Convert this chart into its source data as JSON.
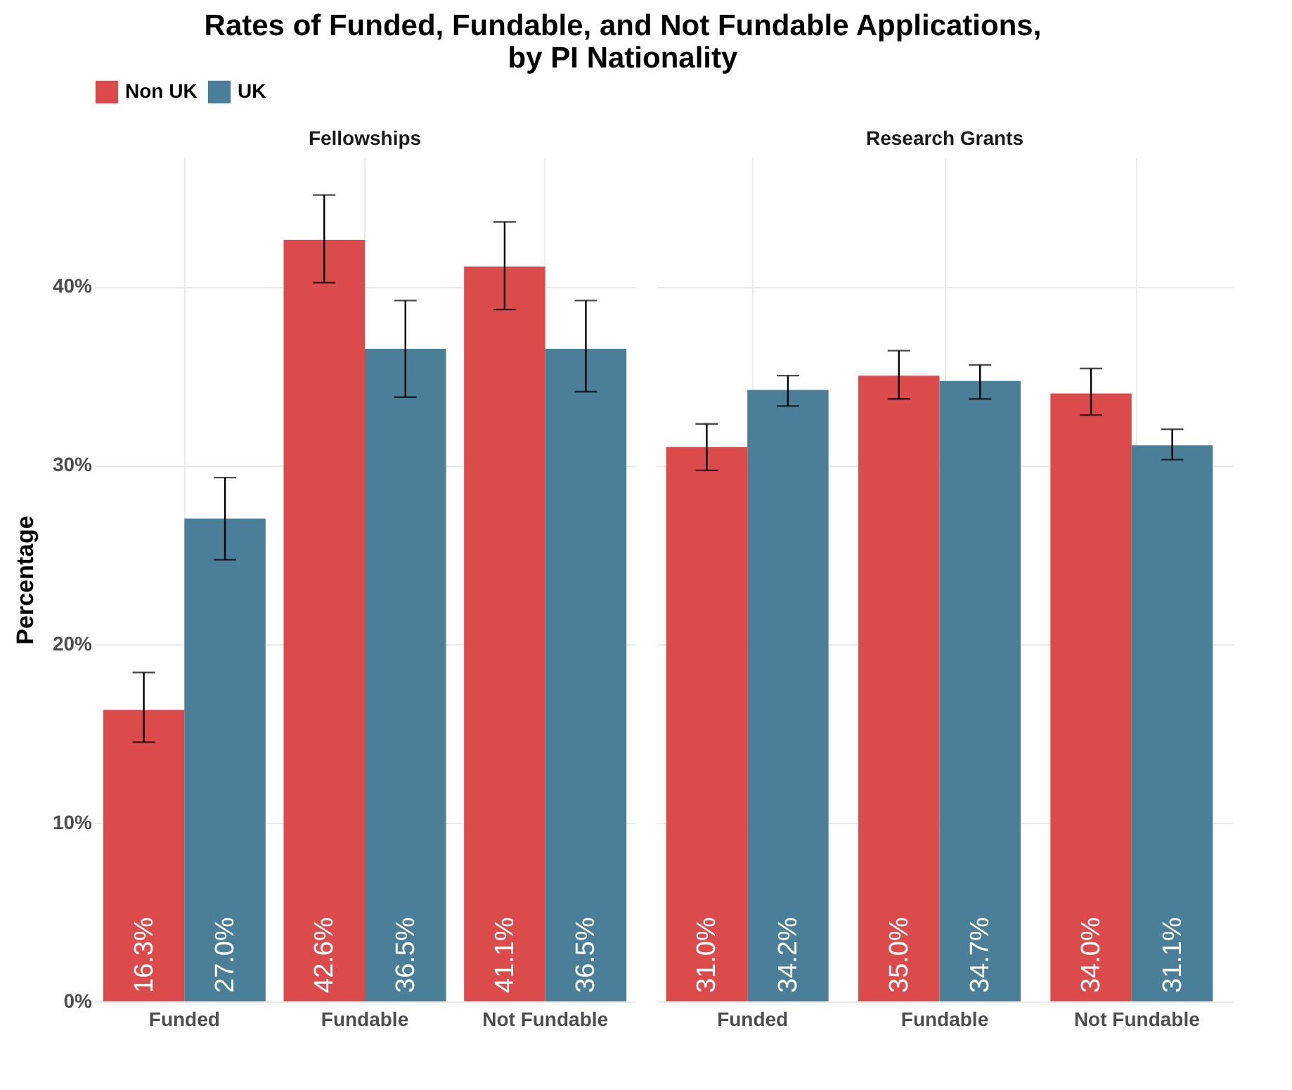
{
  "chart_data": [
    {
      "type": "bar",
      "title": "Rates of Funded, Fundable, and Not Fundable Applications,\nby PI Nationality",
      "subtitle": "Fellowships",
      "ylabel": "Percentage",
      "categories": [
        "Funded",
        "Fundable",
        "Not Fundable"
      ],
      "series": [
        {
          "name": "Non UK",
          "color": "#db4b4c",
          "values": [
            16.3,
            42.6,
            41.1
          ],
          "value_labels": [
            "16.3%",
            "42.6%",
            "41.1%"
          ],
          "errors": [
            [
              14.5,
              18.4
            ],
            [
              40.2,
              45.1
            ],
            [
              38.7,
              43.6
            ]
          ]
        },
        {
          "name": "UK",
          "color": "#4b7e98",
          "values": [
            27.0,
            36.5,
            36.5
          ],
          "value_labels": [
            "27.0%",
            "36.5%",
            "36.5%"
          ],
          "errors": [
            [
              24.7,
              29.3
            ],
            [
              33.8,
              39.2
            ],
            [
              34.1,
              39.2
            ]
          ]
        }
      ],
      "ylim": [
        0,
        47.2
      ],
      "yticks": [
        {
          "value": 0,
          "label": "0%"
        },
        {
          "value": 10,
          "label": "10%"
        },
        {
          "value": 20,
          "label": "20%"
        },
        {
          "value": 30,
          "label": "30%"
        },
        {
          "value": 40,
          "label": "40%"
        }
      ],
      "grid": true,
      "legend": "top"
    },
    {
      "type": "bar",
      "subtitle": "Research Grants",
      "categories": [
        "Funded",
        "Fundable",
        "Not Fundable"
      ],
      "series": [
        {
          "name": "Non UK",
          "color": "#db4b4c",
          "values": [
            31.0,
            35.0,
            34.0
          ],
          "value_labels": [
            "31.0%",
            "35.0%",
            "34.0%"
          ],
          "errors": [
            [
              29.7,
              32.3
            ],
            [
              33.7,
              36.4
            ],
            [
              32.8,
              35.4
            ]
          ]
        },
        {
          "name": "UK",
          "color": "#4b7e98",
          "values": [
            34.2,
            34.7,
            31.1
          ],
          "value_labels": [
            "34.2%",
            "34.7%",
            "31.1%"
          ],
          "errors": [
            [
              33.3,
              35.0
            ],
            [
              33.7,
              35.6
            ],
            [
              30.3,
              32.0
            ]
          ]
        }
      ],
      "ylim": [
        0,
        47.2
      ],
      "yticks": [
        0,
        10,
        20,
        30,
        40
      ],
      "grid": true,
      "legend": "top",
      "tick_labels": "x"
    }
  ]
}
